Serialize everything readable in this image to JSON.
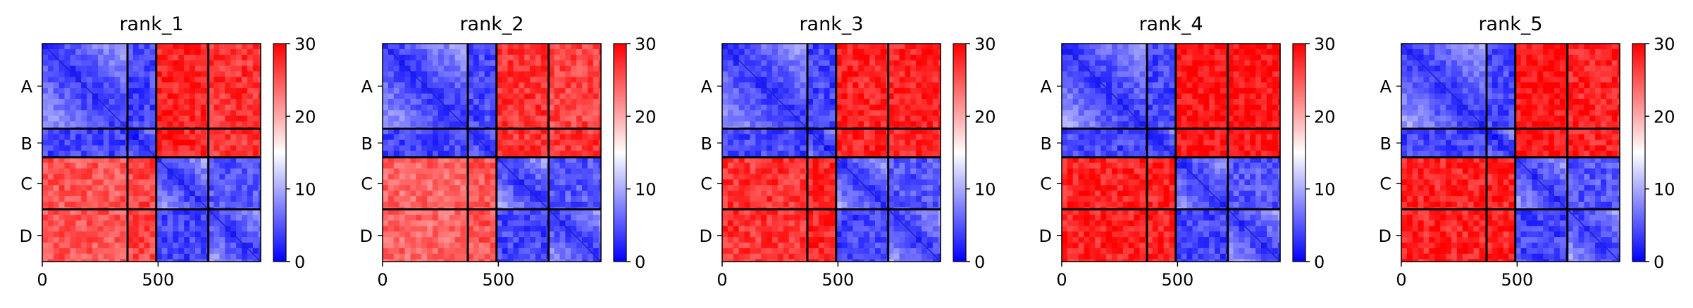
{
  "chart_data": [
    {
      "type": "heatmap",
      "title": "rank_1",
      "xlabel": "",
      "ylabel": "",
      "x_range": [
        0,
        943
      ],
      "x_ticks": [
        0,
        500
      ],
      "chain_labels": [
        "A",
        "B",
        "C",
        "D"
      ],
      "chain_boundaries": [
        0,
        368,
        492,
        717,
        943
      ],
      "colorbar": {
        "range": [
          0,
          30
        ],
        "ticks": [
          0,
          10,
          20,
          30
        ],
        "colormap": "bwr"
      },
      "block_values": [
        [
          3,
          4,
          28,
          27
        ],
        [
          4,
          2,
          28,
          27
        ],
        [
          25,
          26,
          3,
          5
        ],
        [
          25,
          26,
          4,
          3
        ]
      ]
    },
    {
      "type": "heatmap",
      "title": "rank_2",
      "xlabel": "",
      "ylabel": "",
      "x_range": [
        0,
        943
      ],
      "x_ticks": [
        0,
        500
      ],
      "chain_labels": [
        "A",
        "B",
        "C",
        "D"
      ],
      "chain_boundaries": [
        0,
        368,
        492,
        717,
        943
      ],
      "colorbar": {
        "range": [
          0,
          30
        ],
        "ticks": [
          0,
          10,
          20,
          30
        ],
        "colormap": "bwr"
      },
      "block_values": [
        [
          3,
          4,
          27,
          26
        ],
        [
          4,
          2,
          27,
          27
        ],
        [
          24,
          25,
          3,
          5
        ],
        [
          24,
          25,
          4,
          3
        ]
      ]
    },
    {
      "type": "heatmap",
      "title": "rank_3",
      "xlabel": "",
      "ylabel": "",
      "x_range": [
        0,
        943
      ],
      "x_ticks": [
        0,
        500
      ],
      "chain_labels": [
        "A",
        "B",
        "C",
        "D"
      ],
      "chain_boundaries": [
        0,
        368,
        492,
        717,
        943
      ],
      "colorbar": {
        "range": [
          0,
          30
        ],
        "ticks": [
          0,
          10,
          20,
          30
        ],
        "colormap": "bwr"
      },
      "block_values": [
        [
          3,
          4,
          28,
          28
        ],
        [
          4,
          2,
          28,
          28
        ],
        [
          27,
          28,
          3,
          5
        ],
        [
          27,
          28,
          4,
          3
        ]
      ]
    },
    {
      "type": "heatmap",
      "title": "rank_4",
      "xlabel": "",
      "ylabel": "",
      "x_range": [
        0,
        943
      ],
      "x_ticks": [
        0,
        500
      ],
      "chain_labels": [
        "A",
        "B",
        "C",
        "D"
      ],
      "chain_boundaries": [
        0,
        368,
        492,
        717,
        943
      ],
      "colorbar": {
        "range": [
          0,
          30
        ],
        "ticks": [
          0,
          10,
          20,
          30
        ],
        "colormap": "bwr"
      },
      "block_values": [
        [
          3,
          4,
          29,
          29
        ],
        [
          4,
          2,
          29,
          29
        ],
        [
          28,
          28,
          3,
          5
        ],
        [
          28,
          28,
          4,
          3
        ]
      ]
    },
    {
      "type": "heatmap",
      "title": "rank_5",
      "xlabel": "",
      "ylabel": "",
      "x_range": [
        0,
        943
      ],
      "x_ticks": [
        0,
        500
      ],
      "chain_labels": [
        "A",
        "B",
        "C",
        "D"
      ],
      "chain_boundaries": [
        0,
        368,
        492,
        717,
        943
      ],
      "colorbar": {
        "range": [
          0,
          30
        ],
        "ticks": [
          0,
          10,
          20,
          30
        ],
        "colormap": "bwr"
      },
      "block_values": [
        [
          3,
          4,
          29,
          28
        ],
        [
          4,
          2,
          29,
          28
        ],
        [
          28,
          28,
          3,
          5
        ],
        [
          28,
          28,
          4,
          3
        ]
      ]
    }
  ]
}
